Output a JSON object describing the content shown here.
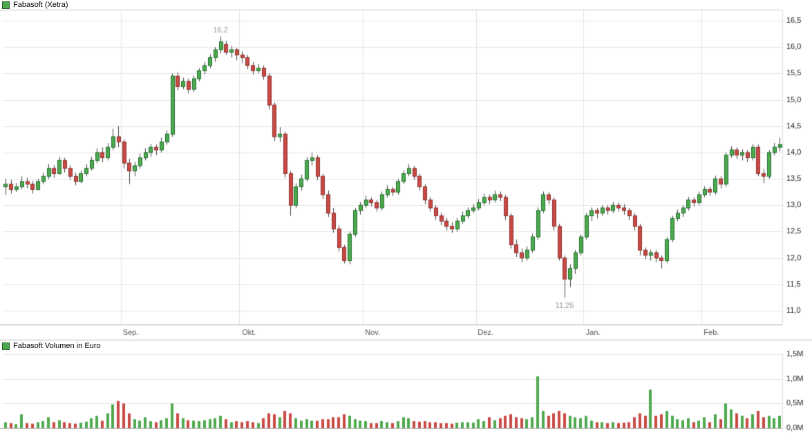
{
  "price_panel": {
    "legend": "Fabasoft (Xetra)"
  },
  "volume_panel": {
    "legend": "Fabasoft Volumen in Euro"
  },
  "chart_data": {
    "type": "candlestick",
    "title": "Fabasoft (Xetra)",
    "subtitle_volume": "Fabasoft Volumen in Euro",
    "x_axis": {
      "labels": [
        "Sep.",
        "Okt.",
        "Nov.",
        "Dez.",
        "Jan.",
        "Feb."
      ],
      "month_start_indices": [
        22,
        44,
        67,
        88,
        108,
        130
      ]
    },
    "price_axis": {
      "side": "right",
      "min": 11.0,
      "max": 16.5,
      "ticks": [
        {
          "label": "16,5",
          "value": 16.5
        },
        {
          "label": "16,0",
          "value": 16.0
        },
        {
          "label": "15,5",
          "value": 15.5
        },
        {
          "label": "15,0",
          "value": 15.0
        },
        {
          "label": "14,5",
          "value": 14.5
        },
        {
          "label": "14,0",
          "value": 14.0
        },
        {
          "label": "13,5",
          "value": 13.5
        },
        {
          "label": "13,0",
          "value": 13.0
        },
        {
          "label": "12,5",
          "value": 12.5
        },
        {
          "label": "12,0",
          "value": 12.0
        },
        {
          "label": "11,5",
          "value": 11.5
        },
        {
          "label": "11,0",
          "value": 11.0
        }
      ]
    },
    "volume_axis": {
      "side": "right",
      "min": 0.0,
      "max": 1.5,
      "unit": "M",
      "ticks": [
        {
          "label": "1,5M",
          "value": 1.5
        },
        {
          "label": "1,0M",
          "value": 1.0
        },
        {
          "label": "0,5M",
          "value": 0.5
        },
        {
          "label": "0,0M",
          "value": 0.0
        }
      ]
    },
    "annotations": [
      {
        "index": 40,
        "price": 16.2,
        "label": "16,2",
        "position": "above"
      },
      {
        "index": 104,
        "price": 11.25,
        "label": "11,25",
        "position": "below"
      }
    ],
    "colors": {
      "up": "#4ea94e",
      "up_border": "#1d6f2b",
      "down": "#c94a44",
      "down_border": "#8e2f2c",
      "wick": "#444444",
      "grid": "#e3e3e3",
      "panel_line": "#aaaaaa",
      "separator": "#bbbbbb",
      "tick_text": "#222222",
      "month_text": "#555555",
      "annotation_text": "#9a9a9a"
    },
    "candles": [
      [
        13.35,
        13.5,
        13.2,
        13.4
      ],
      [
        13.4,
        13.48,
        13.22,
        13.3
      ],
      [
        13.3,
        13.42,
        13.25,
        13.35
      ],
      [
        13.35,
        13.55,
        13.3,
        13.45
      ],
      [
        13.45,
        13.52,
        13.32,
        13.4
      ],
      [
        13.4,
        13.46,
        13.22,
        13.3
      ],
      [
        13.3,
        13.5,
        13.28,
        13.45
      ],
      [
        13.45,
        13.62,
        13.4,
        13.55
      ],
      [
        13.55,
        13.78,
        13.5,
        13.7
      ],
      [
        13.7,
        13.76,
        13.52,
        13.6
      ],
      [
        13.6,
        13.92,
        13.58,
        13.85
      ],
      [
        13.85,
        13.9,
        13.62,
        13.7
      ],
      [
        13.7,
        13.76,
        13.48,
        13.55
      ],
      [
        13.55,
        13.62,
        13.38,
        13.45
      ],
      [
        13.45,
        13.66,
        13.42,
        13.6
      ],
      [
        13.6,
        13.78,
        13.55,
        13.7
      ],
      [
        13.7,
        13.92,
        13.66,
        13.85
      ],
      [
        13.85,
        14.08,
        13.8,
        14.0
      ],
      [
        14.0,
        14.1,
        13.82,
        13.9
      ],
      [
        13.9,
        14.18,
        13.85,
        14.1
      ],
      [
        14.1,
        14.45,
        14.05,
        14.3
      ],
      [
        14.3,
        14.5,
        14.1,
        14.2
      ],
      [
        14.2,
        14.25,
        13.7,
        13.8
      ],
      [
        13.8,
        13.88,
        13.4,
        13.65
      ],
      [
        13.65,
        13.82,
        13.55,
        13.75
      ],
      [
        13.75,
        13.98,
        13.7,
        13.9
      ],
      [
        13.9,
        14.08,
        13.85,
        14.0
      ],
      [
        14.0,
        14.16,
        13.92,
        14.1
      ],
      [
        14.1,
        14.15,
        13.95,
        14.05
      ],
      [
        14.05,
        14.28,
        14.0,
        14.2
      ],
      [
        14.2,
        14.42,
        14.15,
        14.35
      ],
      [
        14.35,
        15.5,
        14.3,
        15.45
      ],
      [
        15.45,
        15.52,
        15.18,
        15.25
      ],
      [
        15.25,
        15.42,
        15.2,
        15.35
      ],
      [
        15.35,
        15.4,
        15.12,
        15.2
      ],
      [
        15.2,
        15.46,
        15.15,
        15.4
      ],
      [
        15.4,
        15.6,
        15.35,
        15.55
      ],
      [
        15.55,
        15.72,
        15.48,
        15.65
      ],
      [
        15.65,
        15.86,
        15.6,
        15.8
      ],
      [
        15.8,
        16.0,
        15.72,
        15.95
      ],
      [
        15.95,
        16.2,
        15.88,
        16.1
      ],
      [
        16.05,
        16.12,
        15.85,
        15.9
      ],
      [
        15.9,
        16.02,
        15.8,
        15.95
      ],
      [
        15.95,
        15.98,
        15.75,
        15.85
      ],
      [
        15.85,
        15.92,
        15.7,
        15.8
      ],
      [
        15.8,
        15.85,
        15.58,
        15.65
      ],
      [
        15.65,
        15.72,
        15.48,
        15.55
      ],
      [
        15.55,
        15.68,
        15.5,
        15.6
      ],
      [
        15.6,
        15.65,
        15.38,
        15.45
      ],
      [
        15.45,
        15.5,
        14.82,
        14.9
      ],
      [
        14.9,
        14.95,
        14.22,
        14.3
      ],
      [
        14.3,
        14.48,
        14.2,
        14.35
      ],
      [
        14.35,
        14.4,
        13.52,
        13.6
      ],
      [
        13.6,
        13.65,
        12.8,
        13.0
      ],
      [
        13.0,
        13.42,
        12.95,
        13.35
      ],
      [
        13.35,
        13.58,
        13.28,
        13.5
      ],
      [
        13.5,
        13.92,
        13.45,
        13.85
      ],
      [
        13.85,
        14.0,
        13.75,
        13.9
      ],
      [
        13.9,
        13.95,
        13.48,
        13.55
      ],
      [
        13.55,
        13.6,
        13.12,
        13.2
      ],
      [
        13.2,
        13.28,
        12.78,
        12.85
      ],
      [
        12.85,
        12.95,
        12.48,
        12.55
      ],
      [
        12.55,
        12.62,
        12.12,
        12.2
      ],
      [
        12.2,
        12.25,
        11.9,
        11.95
      ],
      [
        11.95,
        12.5,
        11.88,
        12.45
      ],
      [
        12.45,
        12.95,
        12.4,
        12.9
      ],
      [
        12.9,
        13.06,
        12.82,
        13.0
      ],
      [
        13.0,
        13.18,
        12.95,
        13.1
      ],
      [
        13.1,
        13.15,
        12.98,
        13.05
      ],
      [
        13.05,
        13.1,
        12.88,
        12.95
      ],
      [
        12.95,
        13.26,
        12.9,
        13.2
      ],
      [
        13.2,
        13.38,
        13.15,
        13.3
      ],
      [
        13.3,
        13.35,
        13.18,
        13.25
      ],
      [
        13.25,
        13.5,
        13.2,
        13.45
      ],
      [
        13.45,
        13.66,
        13.4,
        13.6
      ],
      [
        13.6,
        13.78,
        13.55,
        13.7
      ],
      [
        13.7,
        13.75,
        13.48,
        13.55
      ],
      [
        13.55,
        13.6,
        13.28,
        13.35
      ],
      [
        13.35,
        13.4,
        13.02,
        13.1
      ],
      [
        13.1,
        13.16,
        12.88,
        12.95
      ],
      [
        12.95,
        13.0,
        12.72,
        12.8
      ],
      [
        12.8,
        12.86,
        12.62,
        12.7
      ],
      [
        12.7,
        12.76,
        12.52,
        12.6
      ],
      [
        12.6,
        12.68,
        12.48,
        12.55
      ],
      [
        12.55,
        12.76,
        12.5,
        12.7
      ],
      [
        12.7,
        12.88,
        12.65,
        12.8
      ],
      [
        12.8,
        12.96,
        12.75,
        12.9
      ],
      [
        12.9,
        13.02,
        12.85,
        12.95
      ],
      [
        12.95,
        13.12,
        12.9,
        13.05
      ],
      [
        13.05,
        13.22,
        13.0,
        13.15
      ],
      [
        13.15,
        13.2,
        13.02,
        13.1
      ],
      [
        13.1,
        13.28,
        13.05,
        13.2
      ],
      [
        13.2,
        13.26,
        13.08,
        13.15
      ],
      [
        13.15,
        13.2,
        12.72,
        12.8
      ],
      [
        12.8,
        12.85,
        12.18,
        12.25
      ],
      [
        12.25,
        12.35,
        12.02,
        12.1
      ],
      [
        12.1,
        12.18,
        11.92,
        12.0
      ],
      [
        12.0,
        12.22,
        11.95,
        12.15
      ],
      [
        12.15,
        12.46,
        12.1,
        12.4
      ],
      [
        12.4,
        12.96,
        12.35,
        12.9
      ],
      [
        12.9,
        13.26,
        12.85,
        13.2
      ],
      [
        13.2,
        13.25,
        13.02,
        13.1
      ],
      [
        13.1,
        13.15,
        12.52,
        12.6
      ],
      [
        12.6,
        12.65,
        11.95,
        12.0
      ],
      [
        12.0,
        12.05,
        11.25,
        11.6
      ],
      [
        11.6,
        11.88,
        11.45,
        11.8
      ],
      [
        11.8,
        12.15,
        11.7,
        12.1
      ],
      [
        12.1,
        12.45,
        12.05,
        12.4
      ],
      [
        12.4,
        12.85,
        12.35,
        12.8
      ],
      [
        12.8,
        12.96,
        12.7,
        12.9
      ],
      [
        12.9,
        12.95,
        12.75,
        12.85
      ],
      [
        12.85,
        13.0,
        12.8,
        12.95
      ],
      [
        12.95,
        13.0,
        12.82,
        12.9
      ],
      [
        12.9,
        13.06,
        12.85,
        13.0
      ],
      [
        13.0,
        13.05,
        12.88,
        12.95
      ],
      [
        12.95,
        13.02,
        12.82,
        12.9
      ],
      [
        12.9,
        12.95,
        12.72,
        12.8
      ],
      [
        12.8,
        12.85,
        12.52,
        12.6
      ],
      [
        12.6,
        12.65,
        12.05,
        12.15
      ],
      [
        12.15,
        12.2,
        11.98,
        12.05
      ],
      [
        12.05,
        12.16,
        11.95,
        12.1
      ],
      [
        12.1,
        12.15,
        11.92,
        12.0
      ],
      [
        12.0,
        12.05,
        11.8,
        11.95
      ],
      [
        11.95,
        12.4,
        11.9,
        12.35
      ],
      [
        12.35,
        12.8,
        12.3,
        12.75
      ],
      [
        12.75,
        12.92,
        12.7,
        12.85
      ],
      [
        12.85,
        13.0,
        12.78,
        12.95
      ],
      [
        12.95,
        13.16,
        12.9,
        13.1
      ],
      [
        13.1,
        13.15,
        12.98,
        13.05
      ],
      [
        13.05,
        13.26,
        13.0,
        13.2
      ],
      [
        13.2,
        13.36,
        13.15,
        13.3
      ],
      [
        13.3,
        13.35,
        13.18,
        13.25
      ],
      [
        13.25,
        13.56,
        13.2,
        13.5
      ],
      [
        13.5,
        13.55,
        13.32,
        13.4
      ],
      [
        13.4,
        14.0,
        13.35,
        13.95
      ],
      [
        13.95,
        14.12,
        13.9,
        14.05
      ],
      [
        14.05,
        14.1,
        13.88,
        13.95
      ],
      [
        13.95,
        14.06,
        13.85,
        14.0
      ],
      [
        14.0,
        14.05,
        13.82,
        13.9
      ],
      [
        13.9,
        14.16,
        13.85,
        14.1
      ],
      [
        14.1,
        14.15,
        13.55,
        13.6
      ],
      [
        13.6,
        13.68,
        13.42,
        13.55
      ],
      [
        13.55,
        14.05,
        13.5,
        14.0
      ],
      [
        14.0,
        14.18,
        13.95,
        14.1
      ],
      [
        14.1,
        14.28,
        14.02,
        14.15
      ]
    ],
    "volumes": [
      0.12,
      0.1,
      0.08,
      0.28,
      0.1,
      0.09,
      0.12,
      0.14,
      0.22,
      0.12,
      0.16,
      0.12,
      0.1,
      0.09,
      0.11,
      0.13,
      0.2,
      0.25,
      0.15,
      0.3,
      0.48,
      0.55,
      0.5,
      0.3,
      0.18,
      0.15,
      0.22,
      0.14,
      0.12,
      0.16,
      0.2,
      0.5,
      0.3,
      0.2,
      0.16,
      0.15,
      0.14,
      0.16,
      0.18,
      0.2,
      0.25,
      0.18,
      0.12,
      0.14,
      0.12,
      0.14,
      0.12,
      0.1,
      0.2,
      0.3,
      0.28,
      0.22,
      0.35,
      0.3,
      0.2,
      0.15,
      0.18,
      0.15,
      0.15,
      0.18,
      0.18,
      0.22,
      0.22,
      0.28,
      0.25,
      0.18,
      0.15,
      0.14,
      0.1,
      0.1,
      0.14,
      0.12,
      0.1,
      0.14,
      0.22,
      0.2,
      0.14,
      0.13,
      0.14,
      0.12,
      0.12,
      0.1,
      0.1,
      0.09,
      0.11,
      0.12,
      0.12,
      0.11,
      0.18,
      0.14,
      0.22,
      0.16,
      0.2,
      0.25,
      0.28,
      0.22,
      0.2,
      0.18,
      0.22,
      1.05,
      0.35,
      0.25,
      0.3,
      0.35,
      0.3,
      0.25,
      0.22,
      0.2,
      0.25,
      0.15,
      0.12,
      0.12,
      0.1,
      0.12,
      0.1,
      0.11,
      0.12,
      0.22,
      0.3,
      0.25,
      0.78,
      0.25,
      0.28,
      0.35,
      0.25,
      0.18,
      0.16,
      0.2,
      0.12,
      0.15,
      0.22,
      0.12,
      0.28,
      0.18,
      0.5,
      0.38,
      0.3,
      0.25,
      0.2,
      0.28,
      0.35,
      0.22,
      0.25,
      0.2,
      0.25
    ]
  }
}
